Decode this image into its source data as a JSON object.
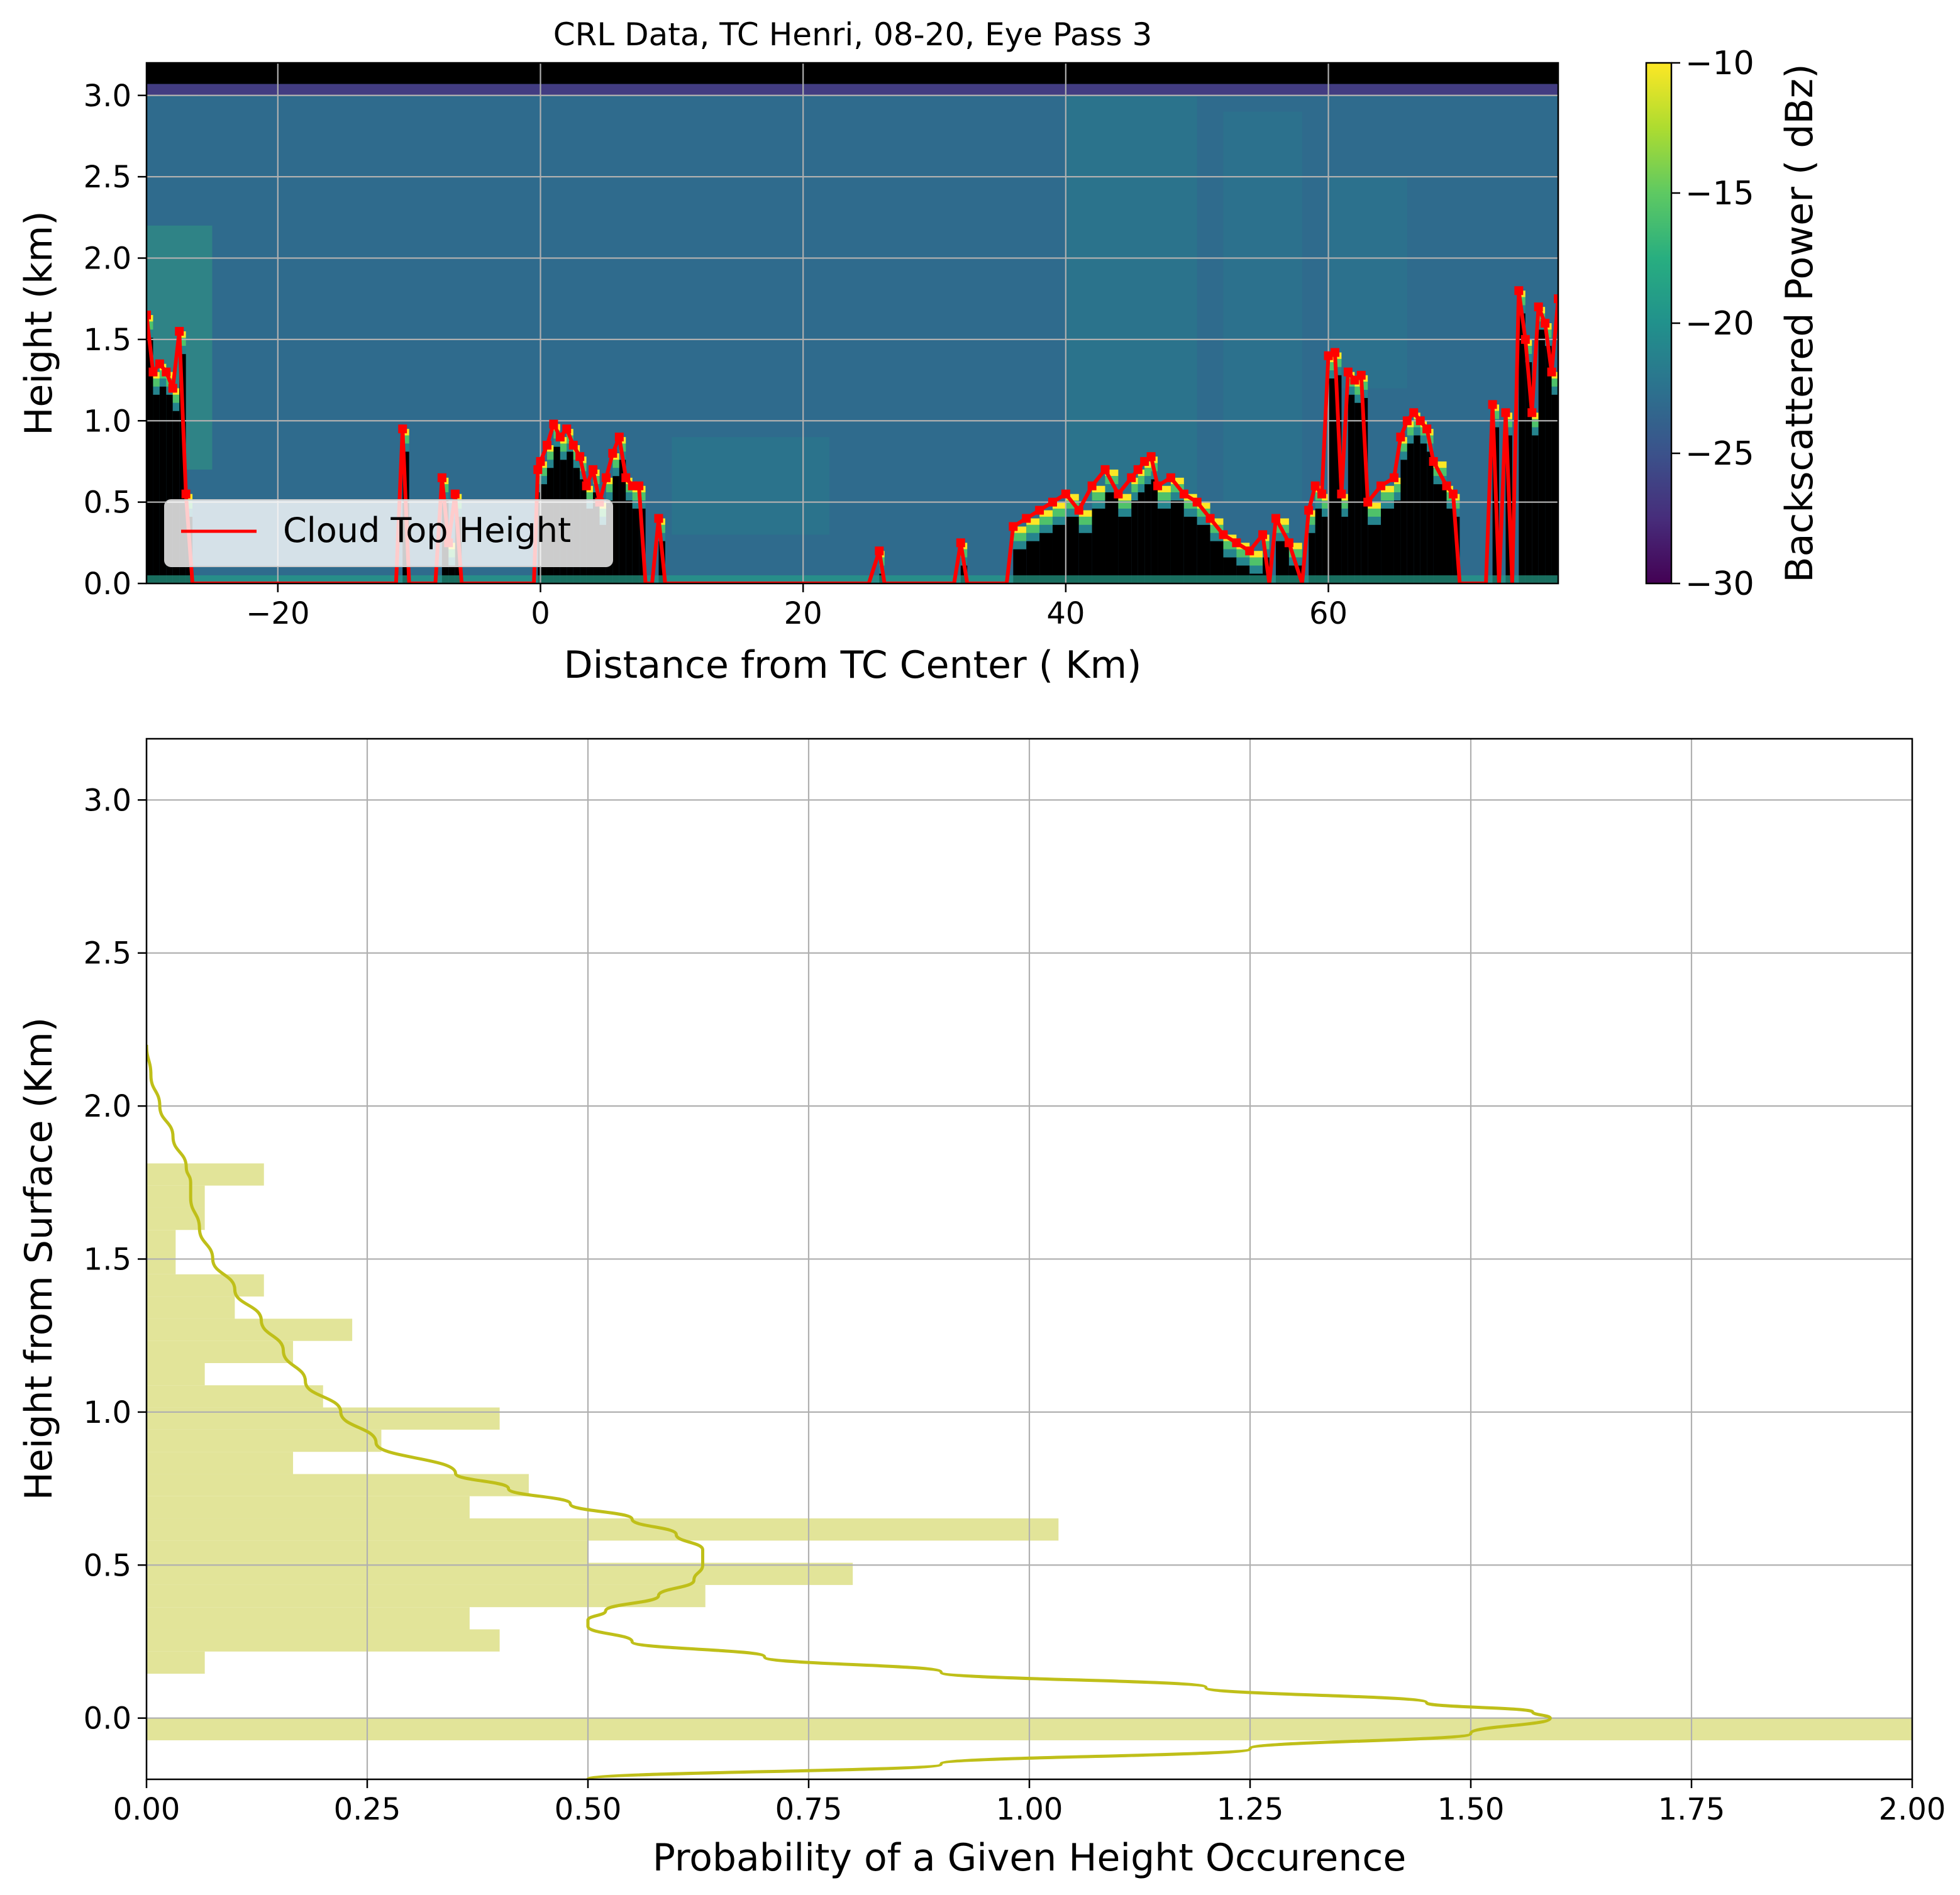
{
  "chart_data": [
    {
      "type": "heatmap",
      "title": "CRL Data, TC Henri, 08-20, Eye Pass 3",
      "xlabel": "Distance from TC Center ( Km)",
      "ylabel": "Height (km)",
      "xlim": [
        -30,
        77.5
      ],
      "ylim": [
        0,
        3.2
      ],
      "xticks": [
        -20,
        0,
        20,
        40,
        60
      ],
      "yticks": [
        0.0,
        0.5,
        1.0,
        1.5,
        2.0,
        2.5,
        3.0
      ],
      "grid": true,
      "legend": {
        "position": "lower-left",
        "entries": [
          "Cloud Top Height"
        ]
      },
      "colorbar": {
        "label": "Backscattered Power ( dBz)",
        "range": [
          -30,
          -10
        ],
        "ticks": [
          -30,
          -25,
          -20,
          -15,
          -10
        ],
        "colormap": "viridis"
      },
      "background_dbz": -23,
      "series": [
        {
          "name": "Cloud Top Height",
          "color": "#ff0000",
          "x": [
            -30,
            -29.5,
            -29,
            -28.5,
            -28,
            -27.5,
            -27,
            -26.5,
            -26,
            -25,
            -24,
            -22,
            -20,
            -18,
            -16,
            -14,
            -12,
            -11,
            -10.5,
            -10,
            -9,
            -8,
            -7.5,
            -7,
            -6.5,
            -6,
            -4,
            -2,
            -0.5,
            -0.2,
            0,
            0.5,
            1,
            1.5,
            2,
            2.5,
            3,
            3.5,
            4,
            4.5,
            5,
            5.5,
            6,
            6.5,
            7,
            7.5,
            8,
            8.5,
            9,
            9.5,
            10,
            15,
            20,
            25,
            25.8,
            26.2,
            27,
            30,
            31.5,
            32,
            32.5,
            34,
            35.5,
            36,
            37,
            38,
            39,
            40,
            41,
            42,
            43,
            44,
            45,
            45.5,
            46,
            46.5,
            47,
            48,
            49,
            50,
            51,
            52,
            53,
            54,
            55,
            55.5,
            56,
            57,
            58,
            58.5,
            59,
            59.5,
            60,
            60.5,
            61,
            61.5,
            62,
            62.5,
            63,
            64,
            65,
            65.5,
            66,
            66.5,
            67,
            67.5,
            68,
            69,
            69.5,
            70,
            71,
            72,
            72.5,
            73,
            73.5,
            74,
            74.5,
            75,
            75.5,
            76,
            76.5,
            77,
            77.5
          ],
          "y": [
            1.65,
            1.3,
            1.35,
            1.3,
            1.2,
            1.55,
            0.55,
            0,
            0,
            0,
            0,
            0,
            0,
            0,
            0,
            0,
            0,
            0,
            0.95,
            0,
            0,
            0,
            0.65,
            0.25,
            0.55,
            0,
            0,
            0,
            0,
            0.7,
            0.75,
            0.85,
            0.98,
            0.9,
            0.95,
            0.85,
            0.78,
            0.6,
            0.7,
            0.5,
            0.65,
            0.8,
            0.9,
            0.65,
            0.6,
            0.6,
            0,
            0,
            0.4,
            0,
            0,
            0,
            0,
            0,
            0.2,
            0,
            0,
            0,
            0,
            0.25,
            0,
            0,
            0,
            0.35,
            0.4,
            0.45,
            0.5,
            0.55,
            0.45,
            0.6,
            0.7,
            0.55,
            0.65,
            0.7,
            0.75,
            0.78,
            0.6,
            0.65,
            0.55,
            0.5,
            0.4,
            0.3,
            0.25,
            0.2,
            0.3,
            0,
            0.4,
            0.25,
            0,
            0.45,
            0.6,
            0.55,
            1.4,
            1.42,
            0.55,
            1.3,
            1.25,
            1.28,
            0.5,
            0.6,
            0.65,
            0.9,
            1.0,
            1.05,
            1.0,
            0.95,
            0.75,
            0.6,
            0.55,
            0,
            0,
            0,
            1.1,
            0,
            1.05,
            0,
            1.8,
            1.5,
            1.05,
            1.7,
            1.6,
            1.3,
            1.75
          ]
        }
      ]
    },
    {
      "type": "bar",
      "orientation": "horizontal",
      "xlabel": "Probability of a Given Height Occurence",
      "ylabel": "Height from Surface (Km)",
      "xlim": [
        0,
        2.0
      ],
      "ylim": [
        -0.2,
        3.2
      ],
      "xticks": [
        0.0,
        0.25,
        0.5,
        0.75,
        1.0,
        1.25,
        1.5,
        1.75,
        2.0
      ],
      "yticks": [
        0.0,
        0.5,
        1.0,
        1.5,
        2.0,
        2.5,
        3.0
      ],
      "grid": true,
      "bar_color": "#e2e499",
      "line_color": "#bfbf19",
      "bin_width": 0.0725,
      "bins": {
        "y_start": [
          -0.0725,
          0.145,
          0.2175,
          0.29,
          0.3625,
          0.435,
          0.5075,
          0.58,
          0.6525,
          0.725,
          0.7975,
          0.87,
          0.9425,
          1.015,
          1.0875,
          1.16,
          1.2325,
          1.305,
          1.3775,
          1.45,
          1.5225,
          1.595,
          1.6675,
          1.74
        ],
        "probability": [
          2.0,
          0.066,
          0.4,
          0.366,
          0.633,
          0.8,
          0.5,
          1.033,
          0.366,
          0.433,
          0.166,
          0.266,
          0.4,
          0.2,
          0.066,
          0.166,
          0.233,
          0.1,
          0.133,
          0.033,
          0.033,
          0.066,
          0.066,
          0.133
        ]
      },
      "kde": {
        "y": [
          -0.2,
          -0.15,
          -0.1,
          -0.05,
          0.0,
          0.02,
          0.05,
          0.1,
          0.15,
          0.2,
          0.25,
          0.3,
          0.32,
          0.35,
          0.4,
          0.45,
          0.5,
          0.55,
          0.6,
          0.65,
          0.7,
          0.75,
          0.8,
          0.9,
          1.0,
          1.1,
          1.2,
          1.3,
          1.4,
          1.5,
          1.6,
          1.7,
          1.75,
          1.8,
          1.9,
          2.0,
          2.1,
          2.2
        ],
        "x": [
          0.5,
          0.9,
          1.25,
          1.5,
          1.59,
          1.57,
          1.45,
          1.2,
          0.9,
          0.7,
          0.55,
          0.5,
          0.5,
          0.52,
          0.58,
          0.62,
          0.63,
          0.63,
          0.6,
          0.55,
          0.48,
          0.41,
          0.35,
          0.26,
          0.22,
          0.18,
          0.155,
          0.13,
          0.1,
          0.075,
          0.06,
          0.05,
          0.05,
          0.045,
          0.03,
          0.015,
          0.005,
          0.0
        ]
      }
    }
  ]
}
